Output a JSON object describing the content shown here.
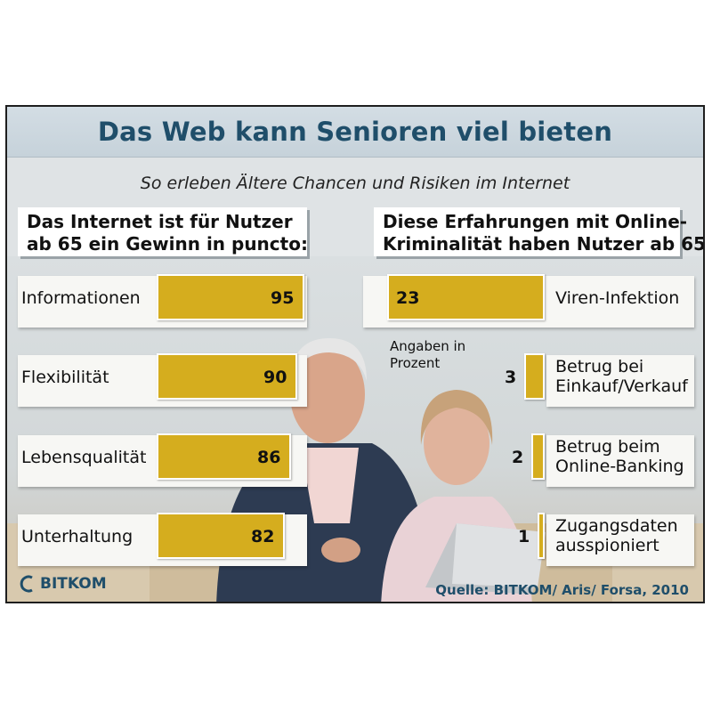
{
  "title": "Das Web kann Senioren viel bieten",
  "subtitle": "So erleben Ältere Chancen und Risiken im Internet",
  "left_heading": [
    "Das Internet ist für Nutzer",
    "ab 65 ein Gewinn in puncto:"
  ],
  "right_heading": [
    "Diese Erfahrungen mit Online-",
    "Kriminalität haben Nutzer ab 65:"
  ],
  "unit_note": [
    "Angaben in",
    "Prozent"
  ],
  "logo_text": "BITKOM",
  "source": "Quelle: BITKOM/ Aris/ Forsa, 2010",
  "colors": {
    "bar": "#d5ad1e",
    "title": "#1f4e6a"
  },
  "chart_data": [
    {
      "type": "bar",
      "title": "Das Internet ist für Nutzer ab 65 ein Gewinn in puncto:",
      "categories": [
        "Informationen",
        "Flexibilität",
        "Lebensqualität",
        "Unterhaltung"
      ],
      "values": [
        95,
        90,
        86,
        82
      ],
      "unit": "Prozent",
      "xlim": [
        0,
        100
      ]
    },
    {
      "type": "bar",
      "title": "Diese Erfahrungen mit Online-Kriminalität haben Nutzer ab 65:",
      "categories": [
        [
          "Viren-Infektion"
        ],
        [
          "Betrug bei",
          "Einkauf/Verkauf"
        ],
        [
          "Betrug beim",
          "Online-Banking"
        ],
        [
          "Zugangsdaten",
          "ausspioniert"
        ]
      ],
      "values": [
        23,
        3,
        2,
        1
      ],
      "unit": "Prozent",
      "xlim": [
        0,
        25
      ]
    }
  ]
}
